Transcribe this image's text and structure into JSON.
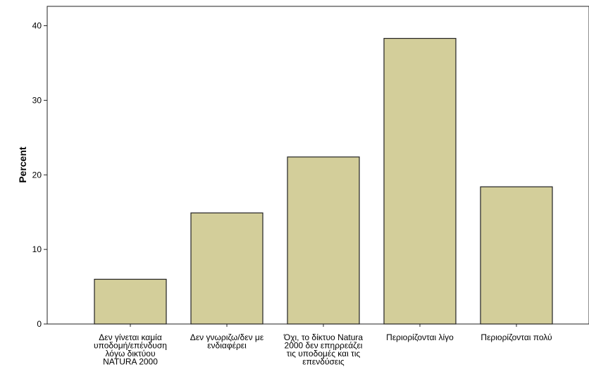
{
  "chart_data": {
    "type": "bar",
    "title": "",
    "xlabel": "",
    "ylabel": "Percent",
    "ylim": [
      0,
      42.6
    ],
    "yticks": [
      0,
      10,
      20,
      30,
      40
    ],
    "categories": [
      [
        "Δεν γίνεται καμία",
        "υποδομή/επένδυση",
        "λόγω δικτύου",
        "NATURA 2000"
      ],
      [
        "Δεν γνωριζω/δεν με",
        "ενδιαφέρει"
      ],
      [
        "Όχι, το δίκτυο Natura",
        "2000 δεν επηρρεάζει",
        "τις υποδομές και τις",
        "επενδύσεις"
      ],
      [
        "Περιορίζονται λίγο"
      ],
      [
        "Περιορίζονται πολύ"
      ]
    ],
    "values": [
      6.0,
      14.9,
      22.4,
      38.3,
      18.4
    ],
    "bar_color": "#d3ce9a",
    "bar_stroke": "#222222",
    "grid": false,
    "legend": "none"
  }
}
